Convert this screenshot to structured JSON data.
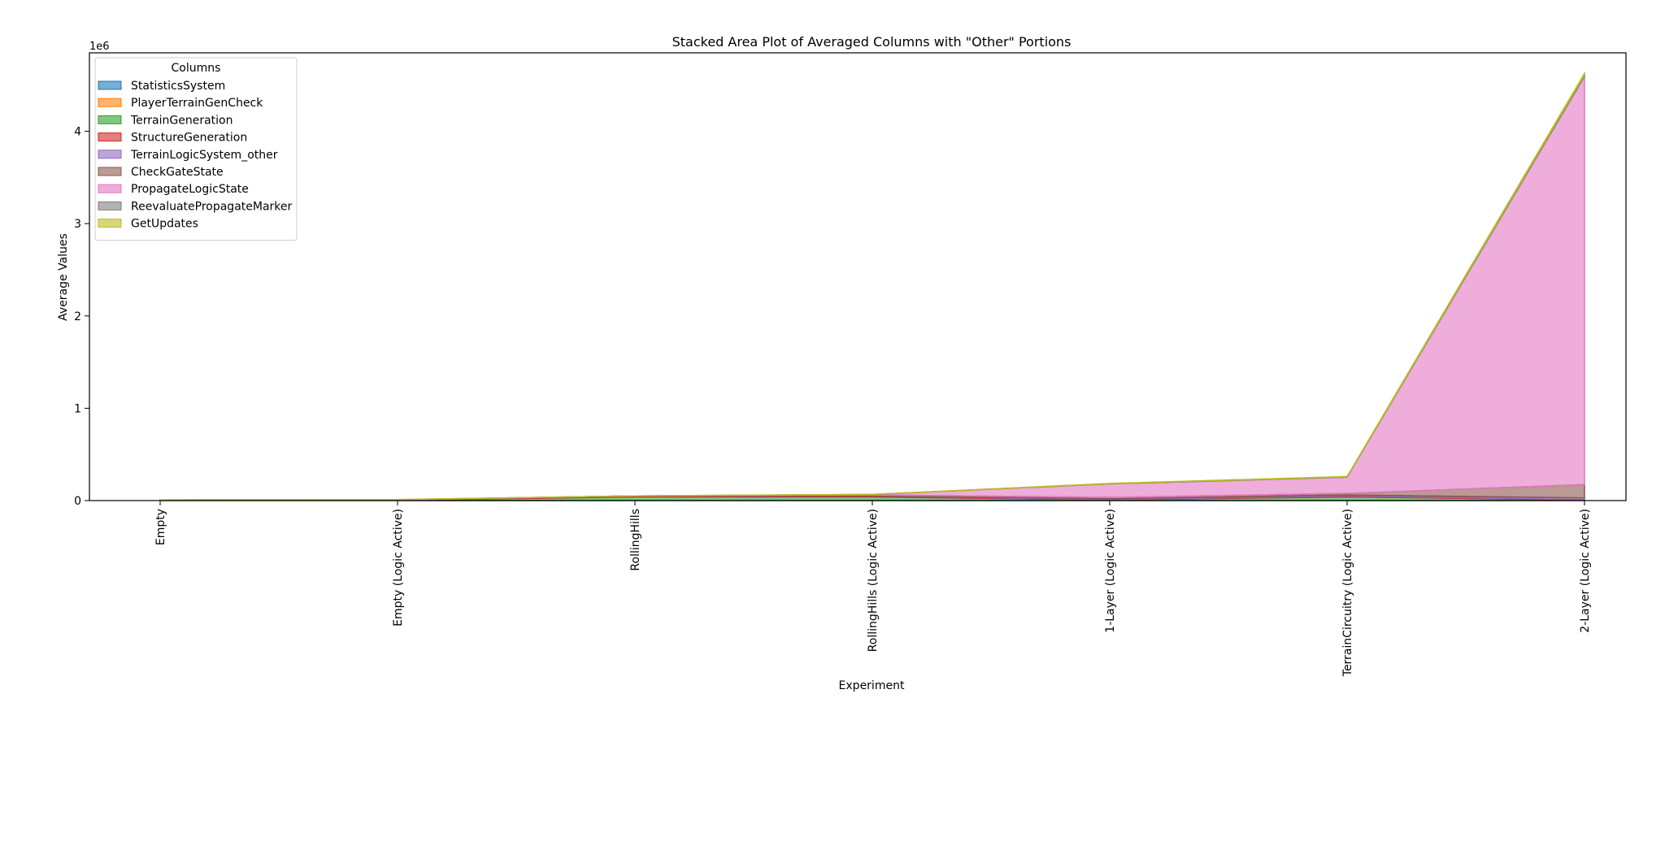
{
  "chart_data": {
    "type": "area",
    "stacked": true,
    "title": "Stacked Area Plot of Averaged Columns with \"Other\" Portions",
    "xlabel": "Experiment",
    "ylabel": "Average Values",
    "y_offset_label": "1e6",
    "ylim": [
      0,
      4850000
    ],
    "yticks": [
      0,
      1000000,
      2000000,
      3000000,
      4000000
    ],
    "ytick_labels": [
      "0",
      "1",
      "2",
      "3",
      "4"
    ],
    "categories": [
      "Empty",
      "Empty (Logic Active)",
      "RollingHills",
      "RollingHills (Logic Active)",
      "1-Layer (Logic Active)",
      "TerrainCircuitry (Logic Active)",
      "2-Layer (Logic Active)"
    ],
    "legend": {
      "title": "Columns",
      "placement": "upper-left"
    },
    "grid": false,
    "series": [
      {
        "name": "StatisticsSystem",
        "color": "#1f77b4",
        "values": [
          1000,
          1000,
          1500,
          1500,
          1500,
          1500,
          1500
        ]
      },
      {
        "name": "PlayerTerrainGenCheck",
        "color": "#ff7f0e",
        "values": [
          500,
          500,
          1000,
          1000,
          1000,
          1000,
          1000
        ]
      },
      {
        "name": "TerrainGeneration",
        "color": "#2ca02c",
        "values": [
          3000,
          3000,
          38000,
          38000,
          4000,
          38000,
          4000
        ]
      },
      {
        "name": "StructureGeneration",
        "color": "#d62728",
        "values": [
          2000,
          2000,
          10000,
          10000,
          2000,
          10000,
          2000
        ]
      },
      {
        "name": "TerrainLogicSystem_other",
        "color": "#9467bd",
        "values": [
          500,
          1000,
          500,
          1500,
          10000,
          10000,
          20000
        ]
      },
      {
        "name": "CheckGateState",
        "color": "#8c564b",
        "values": [
          0,
          1000,
          0,
          9000,
          17000,
          18000,
          145000
        ]
      },
      {
        "name": "PropagateLogicState",
        "color": "#e377c2",
        "values": [
          0,
          2000,
          0,
          5000,
          145000,
          175000,
          4420000
        ]
      },
      {
        "name": "ReevaluatePropagateMarker",
        "color": "#7f7f7f",
        "values": [
          0,
          500,
          0,
          500,
          3000,
          4000,
          20000
        ]
      },
      {
        "name": "GetUpdates",
        "color": "#bcbd22",
        "values": [
          0,
          500,
          0,
          500,
          2000,
          4000,
          15000
        ]
      }
    ]
  }
}
